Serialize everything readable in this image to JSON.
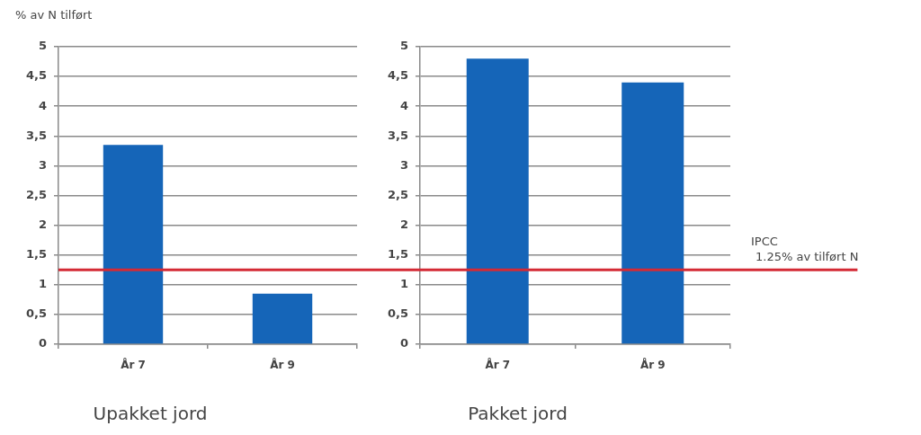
{
  "chart_data": [
    {
      "type": "bar",
      "ylabel": "% av N tilført",
      "xlabel": "Upakket jord",
      "categories": [
        "År 7",
        "År 9"
      ],
      "values": [
        3.35,
        0.85
      ],
      "color": "#1565b8",
      "ylim": [
        0,
        5
      ],
      "yticks": [
        0,
        {
          "value": 0.5,
          "label": "0,5"
        },
        1,
        {
          "value": 1.5,
          "label": "1,5"
        },
        2,
        {
          "value": 2.5,
          "label": "2,5"
        },
        3,
        {
          "value": 3.5,
          "label": "3,5"
        },
        4,
        {
          "value": 4.5,
          "label": "4,5"
        },
        5
      ],
      "grid": "y",
      "ref_lines": [
        {
          "axis": "y",
          "value": 1.25,
          "color": "#d42a35"
        }
      ]
    },
    {
      "type": "bar",
      "xlabel": "Pakket jord",
      "categories": [
        "År 7",
        "År 9"
      ],
      "values": [
        4.8,
        4.4
      ],
      "color": "#1565b8",
      "ylim": [
        0,
        5
      ],
      "yticks": [
        0,
        {
          "value": 0.5,
          "label": "0,5"
        },
        1,
        {
          "value": 1.5,
          "label": "1,5"
        },
        2,
        {
          "value": 2.5,
          "label": "2,5"
        },
        3,
        {
          "value": 3.5,
          "label": "3,5"
        },
        4,
        {
          "value": 4.5,
          "label": "4,5"
        },
        5
      ],
      "grid": "y",
      "ref_lines": [
        {
          "axis": "y",
          "value": 1.25,
          "label": "IPCC\n1.25% av tilført N",
          "color": "#d42a35"
        }
      ]
    }
  ]
}
